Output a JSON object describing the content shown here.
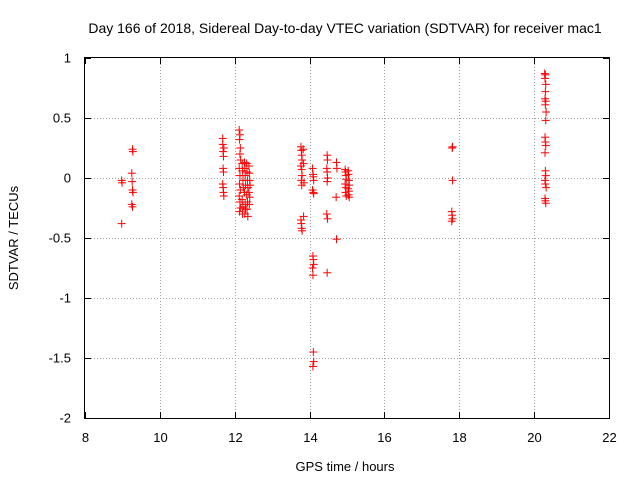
{
  "chart_data": {
    "type": "scatter",
    "title": "Day 166 of 2018, Sidereal Day-to-day VTEC variation (SDTVAR) for receiver mac1",
    "xlabel": "GPS time / hours",
    "ylabel": "SDTVAR / TECUs",
    "xlim": [
      8,
      22
    ],
    "ylim": [
      -2,
      1
    ],
    "xticks": [
      "8",
      "10",
      "12",
      "14",
      "16",
      "18",
      "20",
      "22"
    ],
    "yticks": [
      "1",
      "0.5",
      "0",
      "-0.5",
      "-1",
      "-1.5",
      "-2"
    ],
    "grid": true,
    "marker": "plus",
    "color": "#ff0000",
    "series": [
      {
        "name": "SDTVAR",
        "points": [
          [
            8.98,
            -0.02
          ],
          [
            8.99,
            -0.04
          ],
          [
            8.98,
            -0.38
          ],
          [
            9.27,
            0.24
          ],
          [
            9.28,
            0.22
          ],
          [
            9.25,
            0.04
          ],
          [
            9.26,
            -0.03
          ],
          [
            9.27,
            -0.1
          ],
          [
            9.28,
            -0.12
          ],
          [
            9.25,
            -0.22
          ],
          [
            9.27,
            -0.24
          ],
          [
            11.68,
            0.33
          ],
          [
            11.68,
            0.28
          ],
          [
            11.69,
            0.22
          ],
          [
            11.7,
            0.18
          ],
          [
            11.71,
            0.25
          ],
          [
            11.69,
            0.08
          ],
          [
            11.7,
            0.05
          ],
          [
            11.68,
            -0.05
          ],
          [
            11.69,
            -0.08
          ],
          [
            11.7,
            -0.12
          ],
          [
            11.71,
            -0.15
          ],
          [
            12.12,
            0.4
          ],
          [
            12.14,
            0.36
          ],
          [
            12.13,
            0.32
          ],
          [
            12.15,
            0.25
          ],
          [
            12.14,
            0.2
          ],
          [
            12.16,
            0.15
          ],
          [
            12.12,
            0.08
          ],
          [
            12.14,
            0.02
          ],
          [
            12.13,
            -0.05
          ],
          [
            12.15,
            -0.1
          ],
          [
            12.12,
            -0.15
          ],
          [
            12.14,
            -0.2
          ],
          [
            12.16,
            -0.25
          ],
          [
            12.13,
            -0.28
          ],
          [
            12.2,
            0.12
          ],
          [
            12.21,
            0.06
          ],
          [
            12.22,
            -0.02
          ],
          [
            12.23,
            -0.08
          ],
          [
            12.2,
            -0.18
          ],
          [
            12.22,
            -0.24
          ],
          [
            12.21,
            -0.3
          ],
          [
            12.26,
            0.13
          ],
          [
            12.27,
            0.08
          ],
          [
            12.28,
            0.02
          ],
          [
            12.29,
            -0.06
          ],
          [
            12.26,
            -0.12
          ],
          [
            12.28,
            -0.22
          ],
          [
            12.27,
            -0.3
          ],
          [
            12.29,
            -0.26
          ],
          [
            12.32,
            0.12
          ],
          [
            12.33,
            0.05
          ],
          [
            12.34,
            -0.02
          ],
          [
            12.35,
            -0.08
          ],
          [
            12.32,
            -0.14
          ],
          [
            12.34,
            -0.2
          ],
          [
            12.33,
            -0.26
          ],
          [
            12.35,
            -0.32
          ],
          [
            12.38,
            0.1
          ],
          [
            12.39,
            0.04
          ],
          [
            12.4,
            -0.02
          ],
          [
            12.41,
            -0.06
          ],
          [
            12.38,
            -0.12
          ],
          [
            12.4,
            -0.16
          ],
          [
            12.39,
            -0.22
          ],
          [
            13.77,
            0.26
          ],
          [
            13.78,
            0.23
          ],
          [
            13.79,
            0.19
          ],
          [
            13.8,
            0.15
          ],
          [
            13.77,
            0.1
          ],
          [
            13.79,
            0.07
          ],
          [
            13.8,
            0.02
          ],
          [
            13.78,
            -0.02
          ],
          [
            13.79,
            -0.06
          ],
          [
            13.77,
            -0.35
          ],
          [
            13.78,
            -0.38
          ],
          [
            13.79,
            -0.42
          ],
          [
            13.8,
            -0.44
          ],
          [
            13.83,
            0.24
          ],
          [
            13.84,
            0.12
          ],
          [
            13.85,
            -0.04
          ],
          [
            13.84,
            -0.32
          ],
          [
            14.08,
            0.08
          ],
          [
            14.09,
            0.03
          ],
          [
            14.1,
            0.01
          ],
          [
            14.11,
            -0.02
          ],
          [
            14.08,
            -0.1
          ],
          [
            14.1,
            -0.12
          ],
          [
            14.11,
            -0.13
          ],
          [
            14.09,
            -0.65
          ],
          [
            14.1,
            -0.68
          ],
          [
            14.11,
            -0.72
          ],
          [
            14.08,
            -0.75
          ],
          [
            14.09,
            -0.81
          ],
          [
            14.1,
            -1.45
          ],
          [
            14.11,
            -1.53
          ],
          [
            14.09,
            -1.57
          ],
          [
            14.47,
            0.19
          ],
          [
            14.48,
            0.15
          ],
          [
            14.46,
            0.08
          ],
          [
            14.47,
            0.05
          ],
          [
            14.48,
            0.0
          ],
          [
            14.47,
            -0.03
          ],
          [
            14.46,
            -0.3
          ],
          [
            14.48,
            -0.34
          ],
          [
            14.47,
            -0.79
          ],
          [
            14.72,
            0.13
          ],
          [
            14.73,
            0.08
          ],
          [
            14.71,
            -0.16
          ],
          [
            14.72,
            -0.51
          ],
          [
            14.95,
            0.07
          ],
          [
            14.96,
            0.05
          ],
          [
            14.97,
            0.02
          ],
          [
            14.98,
            -0.01
          ],
          [
            14.95,
            -0.05
          ],
          [
            14.97,
            -0.08
          ],
          [
            14.96,
            -0.12
          ],
          [
            14.98,
            -0.15
          ],
          [
            15.03,
            0.06
          ],
          [
            15.04,
            0.03
          ],
          [
            15.05,
            -0.02
          ],
          [
            15.06,
            -0.06
          ],
          [
            15.03,
            -0.09
          ],
          [
            15.05,
            -0.11
          ],
          [
            15.04,
            -0.14
          ],
          [
            15.06,
            -0.16
          ],
          [
            17.82,
            0.26
          ],
          [
            17.81,
            0.25
          ],
          [
            17.82,
            -0.02
          ],
          [
            17.8,
            -0.28
          ],
          [
            17.81,
            -0.31
          ],
          [
            17.82,
            -0.34
          ],
          [
            17.8,
            -0.36
          ],
          [
            20.28,
            0.87
          ],
          [
            20.3,
            0.86
          ],
          [
            20.29,
            0.83
          ],
          [
            20.31,
            0.78
          ],
          [
            20.3,
            0.72
          ],
          [
            20.29,
            0.66
          ],
          [
            20.31,
            0.64
          ],
          [
            20.3,
            0.61
          ],
          [
            20.32,
            0.55
          ],
          [
            20.31,
            0.48
          ],
          [
            20.29,
            0.34
          ],
          [
            20.3,
            0.3
          ],
          [
            20.31,
            0.27
          ],
          [
            20.29,
            0.21
          ],
          [
            20.3,
            0.06
          ],
          [
            20.31,
            0.02
          ],
          [
            20.29,
            -0.02
          ],
          [
            20.3,
            -0.05
          ],
          [
            20.32,
            -0.08
          ],
          [
            20.29,
            -0.17
          ],
          [
            20.3,
            -0.19
          ],
          [
            20.31,
            -0.21
          ]
        ]
      }
    ]
  }
}
